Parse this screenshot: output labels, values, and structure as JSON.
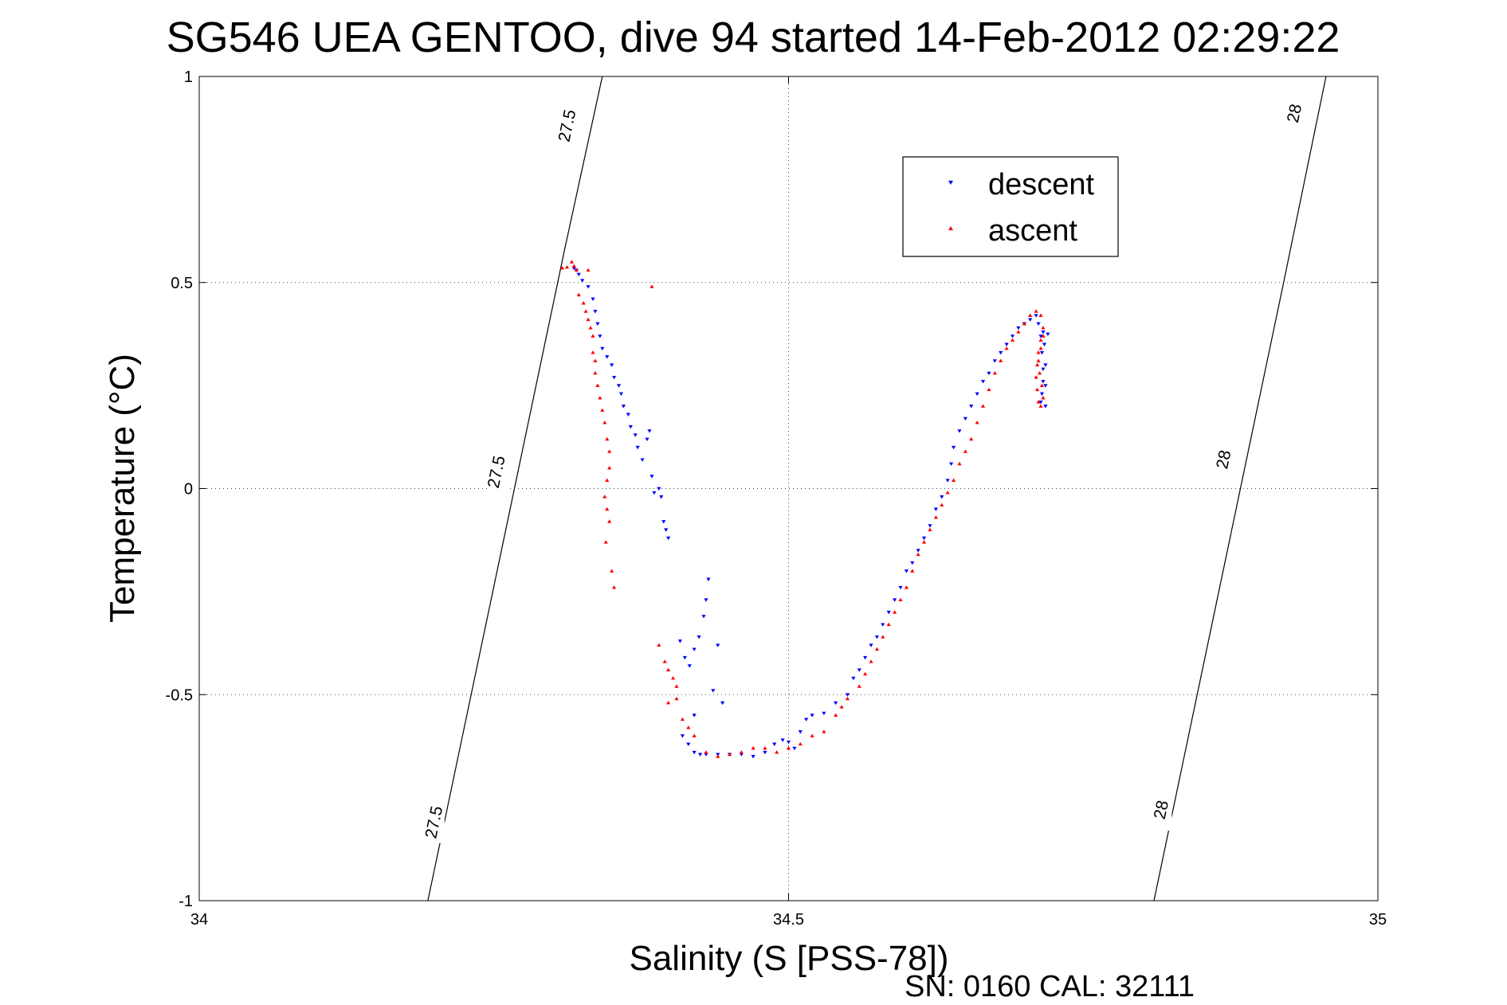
{
  "chart_data": {
    "type": "scatter",
    "title": "SG546 UEA GENTOO, dive 94 started 14-Feb-2012 02:29:22",
    "xlabel": "Salinity (S [PSS-78])",
    "ylabel": "Temperature (°C)",
    "xlim": [
      34,
      35
    ],
    "ylim": [
      -1,
      1
    ],
    "xticks": [
      34,
      34.5,
      35
    ],
    "yticks": [
      -1,
      -0.5,
      0,
      0.5,
      1
    ],
    "xtick_labels": [
      "34",
      "34.5",
      "35"
    ],
    "ytick_labels": [
      "-1",
      "-0.5",
      "0",
      "0.5",
      "1"
    ],
    "grid": "dotted",
    "legend_position": "top-right",
    "footer": "SN: 0160  CAL: 32111",
    "isopycnals": [
      {
        "label": "27.5",
        "points": [
          [
            34.194,
            -1.0
          ],
          [
            34.31,
            0.58
          ],
          [
            34.342,
            1.0
          ]
        ]
      },
      {
        "label": "28",
        "points": [
          [
            34.81,
            -1.0
          ],
          [
            34.92,
            0.5
          ],
          [
            34.956,
            1.0
          ]
        ]
      }
    ],
    "isopycnal_labels": [
      {
        "text": "27.5",
        "x": 34.2,
        "y": -0.81
      },
      {
        "text": "27.5",
        "x": 34.253,
        "y": 0.04
      },
      {
        "text": "27.5",
        "x": 34.313,
        "y": 0.88
      },
      {
        "text": "28",
        "x": 34.817,
        "y": -0.78
      },
      {
        "text": "28",
        "x": 34.87,
        "y": 0.07
      },
      {
        "text": "28",
        "x": 34.93,
        "y": 0.91
      }
    ],
    "series": [
      {
        "name": "descent",
        "color": "#0000ff",
        "marker": "triangle-down",
        "points": [
          [
            34.318,
            0.535
          ],
          [
            34.32,
            0.53
          ],
          [
            34.322,
            0.52
          ],
          [
            34.325,
            0.505
          ],
          [
            34.33,
            0.49
          ],
          [
            34.334,
            0.46
          ],
          [
            34.336,
            0.43
          ],
          [
            34.338,
            0.4
          ],
          [
            34.34,
            0.37
          ],
          [
            34.342,
            0.34
          ],
          [
            34.346,
            0.32
          ],
          [
            34.35,
            0.3
          ],
          [
            34.352,
            0.27
          ],
          [
            34.356,
            0.25
          ],
          [
            34.358,
            0.23
          ],
          [
            34.36,
            0.2
          ],
          [
            34.364,
            0.18
          ],
          [
            34.366,
            0.15
          ],
          [
            34.37,
            0.13
          ],
          [
            34.372,
            0.1
          ],
          [
            34.376,
            0.07
          ],
          [
            34.38,
            0.12
          ],
          [
            34.382,
            0.14
          ],
          [
            34.384,
            0.03
          ],
          [
            34.386,
            -0.01
          ],
          [
            34.39,
            0.0
          ],
          [
            34.392,
            -0.02
          ],
          [
            34.394,
            -0.08
          ],
          [
            34.396,
            -0.1
          ],
          [
            34.398,
            -0.12
          ],
          [
            34.408,
            -0.37
          ],
          [
            34.412,
            -0.41
          ],
          [
            34.416,
            -0.43
          ],
          [
            34.42,
            -0.39
          ],
          [
            34.424,
            -0.36
          ],
          [
            34.428,
            -0.31
          ],
          [
            34.43,
            -0.27
          ],
          [
            34.432,
            -0.22
          ],
          [
            34.44,
            -0.38
          ],
          [
            34.444,
            -0.52
          ],
          [
            34.436,
            -0.49
          ],
          [
            34.42,
            -0.55
          ],
          [
            34.41,
            -0.6
          ],
          [
            34.415,
            -0.62
          ],
          [
            34.42,
            -0.64
          ],
          [
            34.425,
            -0.645
          ],
          [
            34.43,
            -0.645
          ],
          [
            34.44,
            -0.645
          ],
          [
            34.45,
            -0.645
          ],
          [
            34.46,
            -0.645
          ],
          [
            34.47,
            -0.65
          ],
          [
            34.48,
            -0.64
          ],
          [
            34.488,
            -0.62
          ],
          [
            34.495,
            -0.61
          ],
          [
            34.5,
            -0.615
          ],
          [
            34.505,
            -0.63
          ],
          [
            34.51,
            -0.59
          ],
          [
            34.515,
            -0.56
          ],
          [
            34.52,
            -0.55
          ],
          [
            34.53,
            -0.545
          ],
          [
            34.54,
            -0.52
          ],
          [
            34.55,
            -0.5
          ],
          [
            34.555,
            -0.46
          ],
          [
            34.56,
            -0.44
          ],
          [
            34.565,
            -0.41
          ],
          [
            34.57,
            -0.38
          ],
          [
            34.575,
            -0.36
          ],
          [
            34.58,
            -0.33
          ],
          [
            34.585,
            -0.3
          ],
          [
            34.59,
            -0.27
          ],
          [
            34.595,
            -0.24
          ],
          [
            34.6,
            -0.2
          ],
          [
            34.605,
            -0.18
          ],
          [
            34.61,
            -0.15
          ],
          [
            34.615,
            -0.12
          ],
          [
            34.62,
            -0.09
          ],
          [
            34.625,
            -0.05
          ],
          [
            34.63,
            -0.02
          ],
          [
            34.635,
            0.02
          ],
          [
            34.638,
            0.06
          ],
          [
            34.64,
            0.1
          ],
          [
            34.645,
            0.14
          ],
          [
            34.65,
            0.17
          ],
          [
            34.655,
            0.2
          ],
          [
            34.66,
            0.23
          ],
          [
            34.665,
            0.26
          ],
          [
            34.67,
            0.28
          ],
          [
            34.675,
            0.31
          ],
          [
            34.68,
            0.33
          ],
          [
            34.685,
            0.35
          ],
          [
            34.69,
            0.37
          ],
          [
            34.695,
            0.39
          ],
          [
            34.7,
            0.4
          ],
          [
            34.705,
            0.41
          ],
          [
            34.71,
            0.42
          ],
          [
            34.712,
            0.4
          ],
          [
            34.714,
            0.37
          ],
          [
            34.715,
            0.33
          ],
          [
            34.716,
            0.29
          ],
          [
            34.716,
            0.26
          ],
          [
            34.715,
            0.23
          ],
          [
            34.714,
            0.21
          ],
          [
            34.718,
            0.2
          ],
          [
            34.718,
            0.25
          ],
          [
            34.718,
            0.3
          ],
          [
            34.717,
            0.35
          ],
          [
            34.716,
            0.38
          ],
          [
            34.72,
            0.375
          ]
        ]
      },
      {
        "name": "ascent",
        "color": "#ff0000",
        "marker": "triangle-up",
        "points": [
          [
            34.308,
            0.535
          ],
          [
            34.312,
            0.537
          ],
          [
            34.316,
            0.55
          ],
          [
            34.318,
            0.54
          ],
          [
            34.32,
            0.53
          ],
          [
            34.33,
            0.53
          ],
          [
            34.322,
            0.47
          ],
          [
            34.326,
            0.45
          ],
          [
            34.328,
            0.43
          ],
          [
            34.33,
            0.41
          ],
          [
            34.332,
            0.39
          ],
          [
            34.334,
            0.37
          ],
          [
            34.334,
            0.33
          ],
          [
            34.336,
            0.31
          ],
          [
            34.336,
            0.28
          ],
          [
            34.338,
            0.25
          ],
          [
            34.34,
            0.22
          ],
          [
            34.342,
            0.19
          ],
          [
            34.344,
            0.16
          ],
          [
            34.346,
            0.12
          ],
          [
            34.348,
            0.09
          ],
          [
            34.348,
            0.05
          ],
          [
            34.346,
            0.02
          ],
          [
            34.344,
            -0.02
          ],
          [
            34.346,
            -0.05
          ],
          [
            34.348,
            -0.08
          ],
          [
            34.345,
            -0.13
          ],
          [
            34.35,
            -0.2
          ],
          [
            34.352,
            -0.24
          ],
          [
            34.384,
            0.49
          ],
          [
            34.39,
            -0.38
          ],
          [
            34.395,
            -0.42
          ],
          [
            34.398,
            -0.44
          ],
          [
            34.402,
            -0.46
          ],
          [
            34.405,
            -0.48
          ],
          [
            34.398,
            -0.52
          ],
          [
            34.405,
            -0.51
          ],
          [
            34.41,
            -0.56
          ],
          [
            34.415,
            -0.58
          ],
          [
            34.42,
            -0.6
          ],
          [
            34.43,
            -0.64
          ],
          [
            34.44,
            -0.65
          ],
          [
            34.45,
            -0.645
          ],
          [
            34.46,
            -0.64
          ],
          [
            34.47,
            -0.63
          ],
          [
            34.48,
            -0.63
          ],
          [
            34.49,
            -0.64
          ],
          [
            34.5,
            -0.63
          ],
          [
            34.51,
            -0.62
          ],
          [
            34.52,
            -0.6
          ],
          [
            34.53,
            -0.59
          ],
          [
            34.54,
            -0.55
          ],
          [
            34.545,
            -0.53
          ],
          [
            34.55,
            -0.51
          ],
          [
            34.56,
            -0.48
          ],
          [
            34.565,
            -0.45
          ],
          [
            34.57,
            -0.42
          ],
          [
            34.575,
            -0.39
          ],
          [
            34.58,
            -0.36
          ],
          [
            34.585,
            -0.33
          ],
          [
            34.59,
            -0.3
          ],
          [
            34.595,
            -0.27
          ],
          [
            34.6,
            -0.24
          ],
          [
            34.605,
            -0.2
          ],
          [
            34.61,
            -0.16
          ],
          [
            34.615,
            -0.13
          ],
          [
            34.62,
            -0.1
          ],
          [
            34.625,
            -0.07
          ],
          [
            34.63,
            -0.04
          ],
          [
            34.635,
            -0.01
          ],
          [
            34.64,
            0.02
          ],
          [
            34.645,
            0.06
          ],
          [
            34.65,
            0.09
          ],
          [
            34.655,
            0.12
          ],
          [
            34.66,
            0.16
          ],
          [
            34.665,
            0.2
          ],
          [
            34.67,
            0.24
          ],
          [
            34.675,
            0.28
          ],
          [
            34.68,
            0.31
          ],
          [
            34.685,
            0.34
          ],
          [
            34.69,
            0.36
          ],
          [
            34.695,
            0.38
          ],
          [
            34.7,
            0.4
          ],
          [
            34.705,
            0.42
          ],
          [
            34.71,
            0.43
          ],
          [
            34.714,
            0.42
          ],
          [
            34.716,
            0.39
          ],
          [
            34.714,
            0.36
          ],
          [
            34.712,
            0.33
          ],
          [
            34.711,
            0.3
          ],
          [
            34.71,
            0.27
          ],
          [
            34.711,
            0.24
          ],
          [
            34.712,
            0.21
          ],
          [
            34.714,
            0.2
          ],
          [
            34.716,
            0.22
          ],
          [
            34.715,
            0.25
          ],
          [
            34.713,
            0.28
          ],
          [
            34.712,
            0.31
          ],
          [
            34.714,
            0.34
          ],
          [
            34.716,
            0.37
          ]
        ]
      }
    ]
  }
}
